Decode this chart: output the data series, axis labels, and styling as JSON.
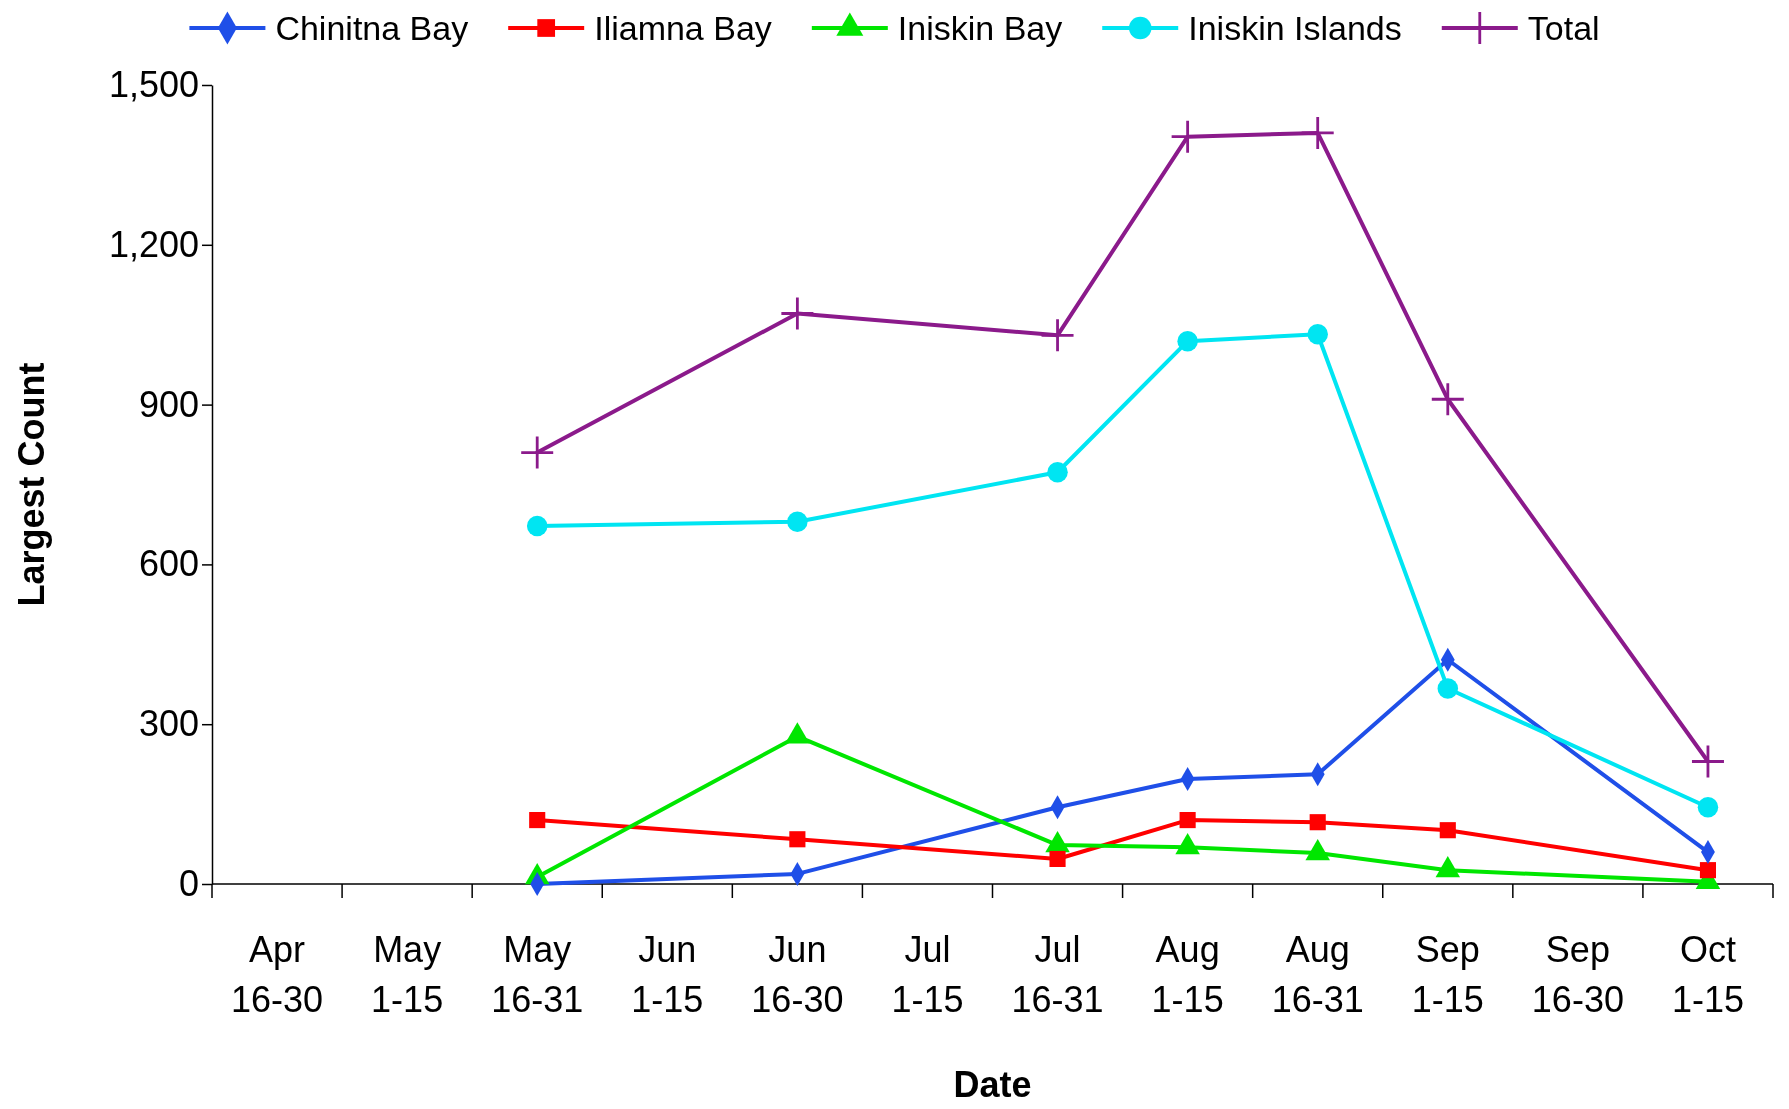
{
  "chart_data": {
    "type": "line",
    "xlabel": "Date",
    "ylabel": "Largest Count",
    "categories": [
      "Apr 16-30",
      "May 1-15",
      "May 16-31",
      "Jun 1-15",
      "Jun 16-30",
      "Jul 1-15",
      "Jul 16-31",
      "Aug 1-15",
      "Aug 16-31",
      "Sep 1-15",
      "Sep 16-30",
      "Oct 1-15"
    ],
    "series": [
      {
        "name": "Chinitna Bay",
        "color": "#1f4fe8",
        "marker": "diamond",
        "values": [
          null,
          null,
          0,
          null,
          19,
          null,
          144,
          197,
          206,
          421,
          null,
          60
        ]
      },
      {
        "name": "Iliamna Bay",
        "color": "#ff0000",
        "marker": "square",
        "values": [
          null,
          null,
          120,
          null,
          84,
          null,
          47,
          120,
          116,
          101,
          null,
          26
        ]
      },
      {
        "name": "Iniskin Bay",
        "color": "#00e600",
        "marker": "triangle",
        "values": [
          null,
          null,
          13,
          null,
          277,
          null,
          73,
          69,
          58,
          26,
          null,
          4
        ]
      },
      {
        "name": "Iniskin Islands",
        "color": "#00e5f2",
        "marker": "circle",
        "values": [
          null,
          null,
          672,
          null,
          680,
          null,
          773,
          1019,
          1032,
          367,
          null,
          144
        ]
      },
      {
        "name": "Total",
        "color": "#8b1a8b",
        "marker": "cross",
        "values": [
          null,
          null,
          810,
          null,
          1071,
          null,
          1030,
          1403,
          1410,
          910,
          null,
          230
        ]
      }
    ],
    "ylim": [
      0,
      1500
    ],
    "yticks": [
      0,
      300,
      600,
      900,
      {
        "value": 1200,
        "label": "1,200"
      },
      {
        "value": 1500,
        "label": "1,500"
      }
    ],
    "grid": false,
    "legend": "top",
    "line_style": "solid"
  }
}
